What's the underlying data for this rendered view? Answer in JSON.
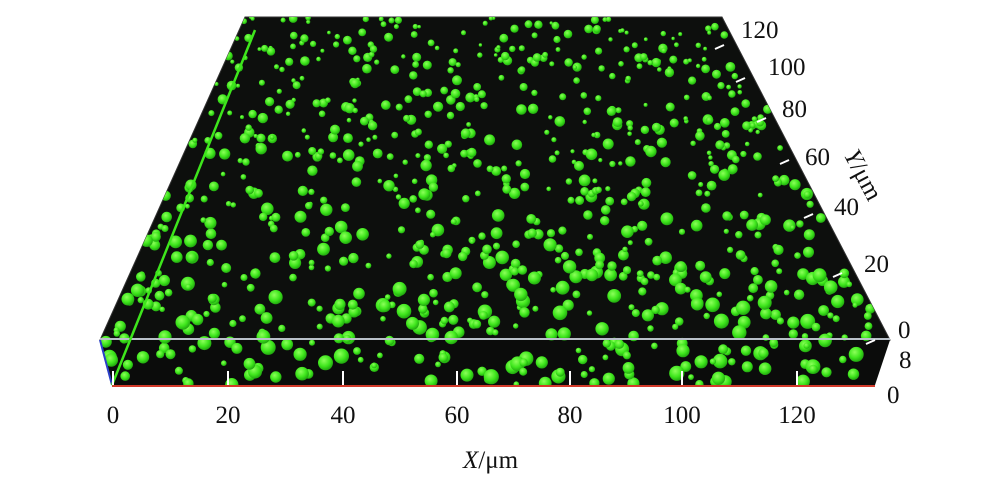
{
  "figure": {
    "x_axis": {
      "title_var": "X",
      "title_unit": "/μm",
      "ticks": [
        "0",
        "20",
        "40",
        "60",
        "80",
        "100",
        "120"
      ]
    },
    "y_axis": {
      "title_var": "Y",
      "title_unit": "/μm",
      "ticks": [
        "120",
        "100",
        "80",
        "60",
        "40",
        "20",
        "0"
      ]
    },
    "z_axis": {
      "ticks": [
        "8",
        "0"
      ]
    },
    "colors": {
      "background": "#0d0f0d",
      "particles": "#3ee61c",
      "x_edge": "#d23a2a",
      "z_edge": "#2a3fc8",
      "ticks": "#ffffff"
    }
  }
}
